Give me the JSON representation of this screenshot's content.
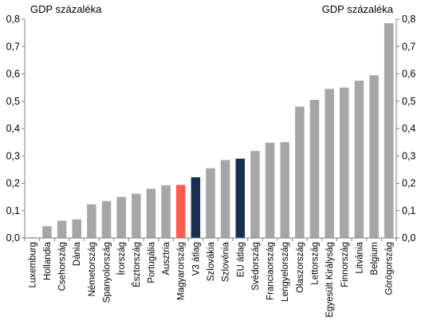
{
  "chart_data": {
    "type": "bar",
    "ylabel_left": "GDP százaléka",
    "ylabel_right": "GDP százaléka",
    "ylim": [
      0,
      0.8
    ],
    "yticks": [
      "0,0",
      "0,1",
      "0,2",
      "0,3",
      "0,4",
      "0,5",
      "0,6",
      "0,7",
      "0,8"
    ],
    "grid": false,
    "categories": [
      "Luxemburg",
      "Hollandia",
      "Csehország",
      "Dánia",
      "Németország",
      "Spanyolország",
      "Írország",
      "Észtország",
      "Portugália",
      "Ausztria",
      "Magyarország",
      "V3 átlag",
      "Szlovákia",
      "Szlovénia",
      "EU átlag",
      "Svédország",
      "Franciaország",
      "Lengyelország",
      "Olaszország",
      "Lettország",
      "Egyesült Királyság",
      "Finnország",
      "Litvánia",
      "Belgium",
      "Görögország"
    ],
    "values": [
      0.002,
      0.043,
      0.063,
      0.068,
      0.123,
      0.135,
      0.15,
      0.162,
      0.18,
      0.193,
      0.194,
      0.222,
      0.255,
      0.285,
      0.29,
      0.318,
      0.348,
      0.35,
      0.48,
      0.505,
      0.545,
      0.55,
      0.575,
      0.595,
      0.785
    ],
    "colors": {
      "default": "#a6a6a6",
      "Magyarország": "#ff5b50",
      "V3 átlag": "#17304f",
      "EU átlag": "#17304f",
      "axis": "#7f7f7f"
    }
  }
}
